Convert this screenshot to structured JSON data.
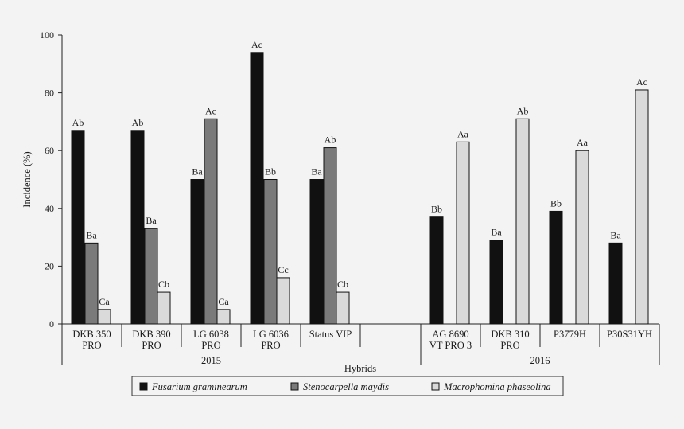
{
  "chart_data": {
    "type": "bar",
    "title": "",
    "xlabel": "Hybrids",
    "ylabel": "Incidence (%)",
    "ylim": [
      0,
      100
    ],
    "yticks": [
      0,
      20,
      40,
      60,
      80,
      100
    ],
    "groups": [
      {
        "year": "2015",
        "categories": [
          {
            "label": [
              "DKB 350",
              "PRO"
            ],
            "values": [
              67,
              28,
              5
            ],
            "labels": [
              "Ab",
              "Ba",
              "Ca"
            ]
          },
          {
            "label": [
              "DKB 390",
              "PRO"
            ],
            "values": [
              67,
              33,
              11
            ],
            "labels": [
              "Ab",
              "Ba",
              "Cb"
            ]
          },
          {
            "label": [
              "LG 6038",
              "PRO"
            ],
            "values": [
              50,
              71,
              5
            ],
            "labels": [
              "Ba",
              "Ac",
              "Ca"
            ]
          },
          {
            "label": [
              "LG 6036",
              "PRO"
            ],
            "values": [
              94,
              50,
              16
            ],
            "labels": [
              "Ac",
              "Bb",
              "Cc"
            ]
          },
          {
            "label": [
              "Status VIP"
            ],
            "values": [
              50,
              61,
              11
            ],
            "labels": [
              "Ba",
              "Ab",
              "Cb"
            ]
          }
        ]
      },
      {
        "year": "2016",
        "categories": [
          {
            "label": [
              "AG 8690",
              "VT PRO 3"
            ],
            "values": [
              37,
              null,
              63
            ],
            "labels": [
              "Bb",
              null,
              "Aa"
            ]
          },
          {
            "label": [
              "DKB 310",
              "PRO"
            ],
            "values": [
              29,
              null,
              71
            ],
            "labels": [
              "Ba",
              null,
              "Ab"
            ]
          },
          {
            "label": [
              "P3779H"
            ],
            "values": [
              39,
              null,
              60
            ],
            "labels": [
              "Bb",
              null,
              "Aa"
            ]
          },
          {
            "label": [
              "P30S31YH"
            ],
            "values": [
              28,
              null,
              81
            ],
            "labels": [
              "Ba",
              null,
              "Ac"
            ]
          }
        ]
      }
    ],
    "series": [
      {
        "name": "Fusarium graminearum",
        "color": "#111111"
      },
      {
        "name": "Stenocarpella maydis",
        "color": "#7a7a7a"
      },
      {
        "name": "Macrophomina phaseolina",
        "color": "#dadada"
      }
    ]
  }
}
